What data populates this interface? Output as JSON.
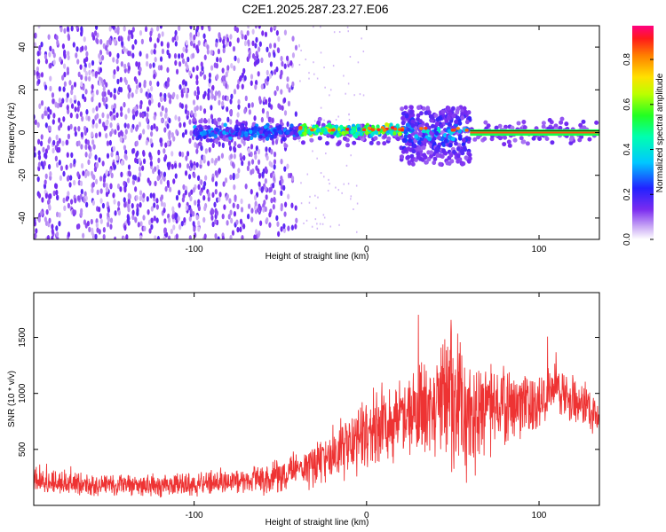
{
  "figure_title": "C2E1.2025.287.23.27.E06",
  "chart_data": [
    {
      "type": "heatmap",
      "title": "C2E1.2025.287.23.27.E06",
      "xlabel": "Height of straight line (km)",
      "ylabel": "Frequency (Hz)",
      "xlim": [
        -193,
        135
      ],
      "ylim": [
        -50,
        50
      ],
      "xticks": [
        -100,
        0,
        100
      ],
      "xtick_labels": [
        "-100",
        "0",
        "100"
      ],
      "yticks": [
        -40,
        -20,
        0,
        20,
        40
      ],
      "ytick_labels": [
        "-40",
        "-20",
        "0",
        "20",
        "40"
      ],
      "colorbar": {
        "label": "Normalized spectral amplitude",
        "range": [
          0.0,
          0.95
        ],
        "ticks": [
          0.0,
          0.2,
          0.4,
          0.6,
          0.8
        ],
        "tick_labels": [
          "0.0",
          "0.2",
          "0.4",
          "0.6",
          "0.8"
        ],
        "colormap": "rainbow (white-purple-blue-cyan-green-yellow-orange-red-magenta)"
      },
      "features": [
        {
          "description": "broadband low-amplitude purple noise",
          "x_range": [
            -193,
            -40
          ],
          "freq_range": [
            -50,
            50
          ],
          "amplitude": 0.1
        },
        {
          "description": "carrier band near 0 Hz, low amplitude",
          "x_range": [
            -100,
            -40
          ],
          "freq_center": 0,
          "amplitude": 0.25
        },
        {
          "description": "carrier band near 0 Hz",
          "x_range": [
            -40,
            20
          ],
          "freq_center": 1,
          "amplitude": 0.5
        },
        {
          "description": "scattered burst around carrier",
          "x_range": [
            20,
            60
          ],
          "freq_range": [
            -15,
            12
          ],
          "amplitude": 0.35
        },
        {
          "description": "strong carrier line",
          "x_range": [
            60,
            135
          ],
          "freq_center": 0,
          "amplitude": 0.9
        }
      ],
      "grid": false,
      "legend": "colorbar right"
    },
    {
      "type": "line",
      "xlabel": "Height of straight line (km)",
      "ylabel": "SNR (10 * v/v)",
      "xlim": [
        -193,
        135
      ],
      "ylim": [
        0,
        1900
      ],
      "xticks": [
        -100,
        0,
        100
      ],
      "xtick_labels": [
        "-100",
        "0",
        "100"
      ],
      "yticks": [
        500,
        1000,
        1500
      ],
      "ytick_labels": [
        "500",
        "1000",
        "1500"
      ],
      "line_color": "#ee3333",
      "series": [
        {
          "x": [
            -193,
            -180,
            -160,
            -140,
            -120,
            -100,
            -80,
            -60,
            -50,
            -40,
            -30,
            -20,
            -10,
            0,
            10,
            20,
            30,
            40,
            50,
            60,
            70,
            80,
            90,
            100,
            110,
            120,
            130,
            135
          ],
          "mid": [
            200,
            200,
            190,
            180,
            180,
            190,
            210,
            230,
            260,
            320,
            380,
            450,
            550,
            650,
            720,
            760,
            850,
            900,
            950,
            800,
            850,
            880,
            900,
            950,
            1050,
            950,
            850,
            780
          ],
          "spread": [
            120,
            130,
            130,
            120,
            120,
            120,
            130,
            150,
            180,
            220,
            260,
            300,
            350,
            380,
            400,
            420,
            480,
            600,
            800,
            650,
            450,
            380,
            330,
            300,
            250,
            250,
            220,
            200
          ]
        }
      ],
      "grid": false
    }
  ]
}
